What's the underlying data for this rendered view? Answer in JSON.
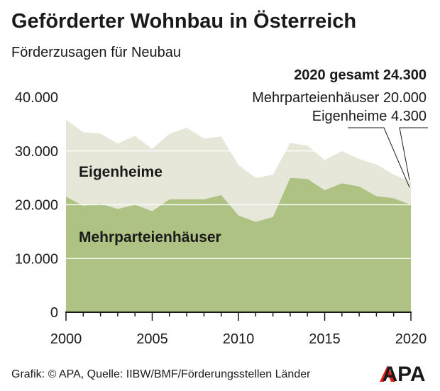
{
  "title": "Geförderter Wohnbau in Österreich",
  "subtitle": "Förderzusagen für Neubau",
  "source": "Grafik: © APA, Quelle: IIBW/BMF/Förderungsstellen Länder",
  "logo_text": "APA",
  "colors": {
    "mehrpartei": "#adc283",
    "eigenheime": "#e6e7d9",
    "text": "#1a1a1a",
    "grid": "#ffffff",
    "logo_red": "#e2231a"
  },
  "chart_data": {
    "type": "area",
    "stacked": true,
    "x": [
      2000,
      2001,
      2002,
      2003,
      2004,
      2005,
      2006,
      2007,
      2008,
      2009,
      2010,
      2011,
      2012,
      2013,
      2014,
      2015,
      2016,
      2017,
      2018,
      2019,
      2020
    ],
    "series": [
      {
        "name": "Mehrparteienhäuser",
        "values": [
          21500,
          19800,
          20200,
          19200,
          20000,
          18800,
          21000,
          21000,
          21000,
          21800,
          18000,
          16800,
          17700,
          25000,
          24800,
          22700,
          24000,
          23400,
          21600,
          21200,
          20000
        ]
      },
      {
        "name": "Eigenheime",
        "values": [
          14300,
          13700,
          13000,
          12200,
          12800,
          11600,
          12200,
          13300,
          11300,
          10900,
          9400,
          8200,
          7900,
          6500,
          6200,
          5600,
          6000,
          5100,
          5900,
          4400,
          4300
        ]
      }
    ],
    "ylim": [
      0,
      40000
    ],
    "yticks": [
      "0",
      "10.000",
      "20.000",
      "30.000",
      "40.000"
    ],
    "yticks_values": [
      0,
      10000,
      20000,
      30000,
      40000
    ],
    "xticks": [
      "2000",
      "2005",
      "2010",
      "2015",
      "2020"
    ],
    "xticks_values": [
      2000,
      2005,
      2010,
      2015,
      2020
    ],
    "grid": true,
    "annotations": {
      "total": "2020 gesamt 24.300",
      "mehrpartei": "Mehrparteienhäuser 20.000",
      "eigenheime": "Eigenheime 4.300"
    }
  }
}
